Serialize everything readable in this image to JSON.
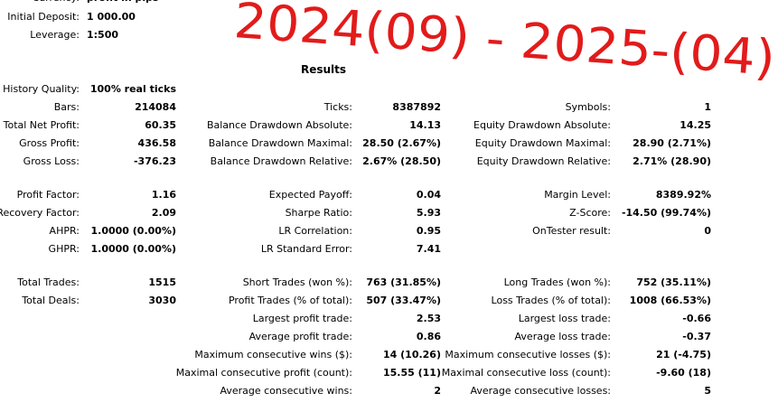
{
  "header": {
    "items": [
      {
        "label": "Currency:",
        "value": "profit in pips"
      },
      {
        "label": "Initial Deposit:",
        "value": "1 000.00"
      },
      {
        "label": "Leverage:",
        "value": "1:500"
      }
    ],
    "annotation": "2024(09) - 2025-(04)"
  },
  "results": {
    "title": "Results",
    "groups": [
      [
        {
          "left": {
            "label": "History Quality:",
            "value": "100% real ticks"
          }
        },
        {
          "left": {
            "label": "Bars:",
            "value": "214084"
          },
          "middle": {
            "label": "Ticks:",
            "value": "8387892"
          },
          "right": {
            "label": "Symbols:",
            "value": "1"
          }
        },
        {
          "left": {
            "label": "Total Net Profit:",
            "value": "60.35"
          },
          "middle": {
            "label": "Balance Drawdown Absolute:",
            "value": "14.13"
          },
          "right": {
            "label": "Equity Drawdown Absolute:",
            "value": "14.25"
          }
        },
        {
          "left": {
            "label": "Gross Profit:",
            "value": "436.58"
          },
          "middle": {
            "label": "Balance Drawdown Maximal:",
            "value": "28.50 (2.67%)"
          },
          "right": {
            "label": "Equity Drawdown Maximal:",
            "value": "28.90 (2.71%)"
          }
        },
        {
          "left": {
            "label": "Gross Loss:",
            "value": "-376.23"
          },
          "middle": {
            "label": "Balance Drawdown Relative:",
            "value": "2.67% (28.50)"
          },
          "right": {
            "label": "Equity Drawdown Relative:",
            "value": "2.71% (28.90)"
          }
        }
      ],
      [
        {
          "left": {
            "label": "Profit Factor:",
            "value": "1.16"
          },
          "middle": {
            "label": "Expected Payoff:",
            "value": "0.04"
          },
          "right": {
            "label": "Margin Level:",
            "value": "8389.92%"
          }
        },
        {
          "left": {
            "label": "Recovery Factor:",
            "value": "2.09"
          },
          "middle": {
            "label": "Sharpe Ratio:",
            "value": "5.93"
          },
          "right": {
            "label": "Z-Score:",
            "value": "-14.50 (99.74%)"
          }
        },
        {
          "left": {
            "label": "AHPR:",
            "value": "1.0000 (0.00%)"
          },
          "middle": {
            "label": "LR Correlation:",
            "value": "0.95"
          },
          "right": {
            "label": "OnTester result:",
            "value": "0"
          }
        },
        {
          "left": {
            "label": "GHPR:",
            "value": "1.0000 (0.00%)"
          },
          "middle": {
            "label": "LR Standard Error:",
            "value": "7.41"
          }
        }
      ],
      [
        {
          "left": {
            "label": "Total Trades:",
            "value": "1515"
          },
          "middle": {
            "label": "Short Trades (won %):",
            "value": "763 (31.85%)"
          },
          "right": {
            "label": "Long Trades (won %):",
            "value": "752 (35.11%)"
          }
        },
        {
          "left": {
            "label": "Total Deals:",
            "value": "3030"
          },
          "middle": {
            "label": "Profit Trades (% of total):",
            "value": "507 (33.47%)"
          },
          "right": {
            "label": "Loss Trades (% of total):",
            "value": "1008 (66.53%)"
          }
        },
        {
          "middle": {
            "label": "Largest profit trade:",
            "value": "2.53"
          },
          "right": {
            "label": "Largest loss trade:",
            "value": "-0.66"
          }
        },
        {
          "middle": {
            "label": "Average profit trade:",
            "value": "0.86"
          },
          "right": {
            "label": "Average loss trade:",
            "value": "-0.37"
          }
        },
        {
          "middle": {
            "label": "Maximum consecutive wins ($):",
            "value": "14 (10.26)"
          },
          "right": {
            "label": "Maximum consecutive losses ($):",
            "value": "21 (-4.75)"
          }
        },
        {
          "middle": {
            "label": "Maximal consecutive profit (count):",
            "value": "15.55 (11)"
          },
          "right": {
            "label": "Maximal consecutive loss (count):",
            "value": "-9.60 (18)"
          }
        },
        {
          "middle": {
            "label": "Average consecutive wins:",
            "value": "2"
          },
          "right": {
            "label": "Average consecutive losses:",
            "value": "5"
          }
        }
      ]
    ]
  }
}
